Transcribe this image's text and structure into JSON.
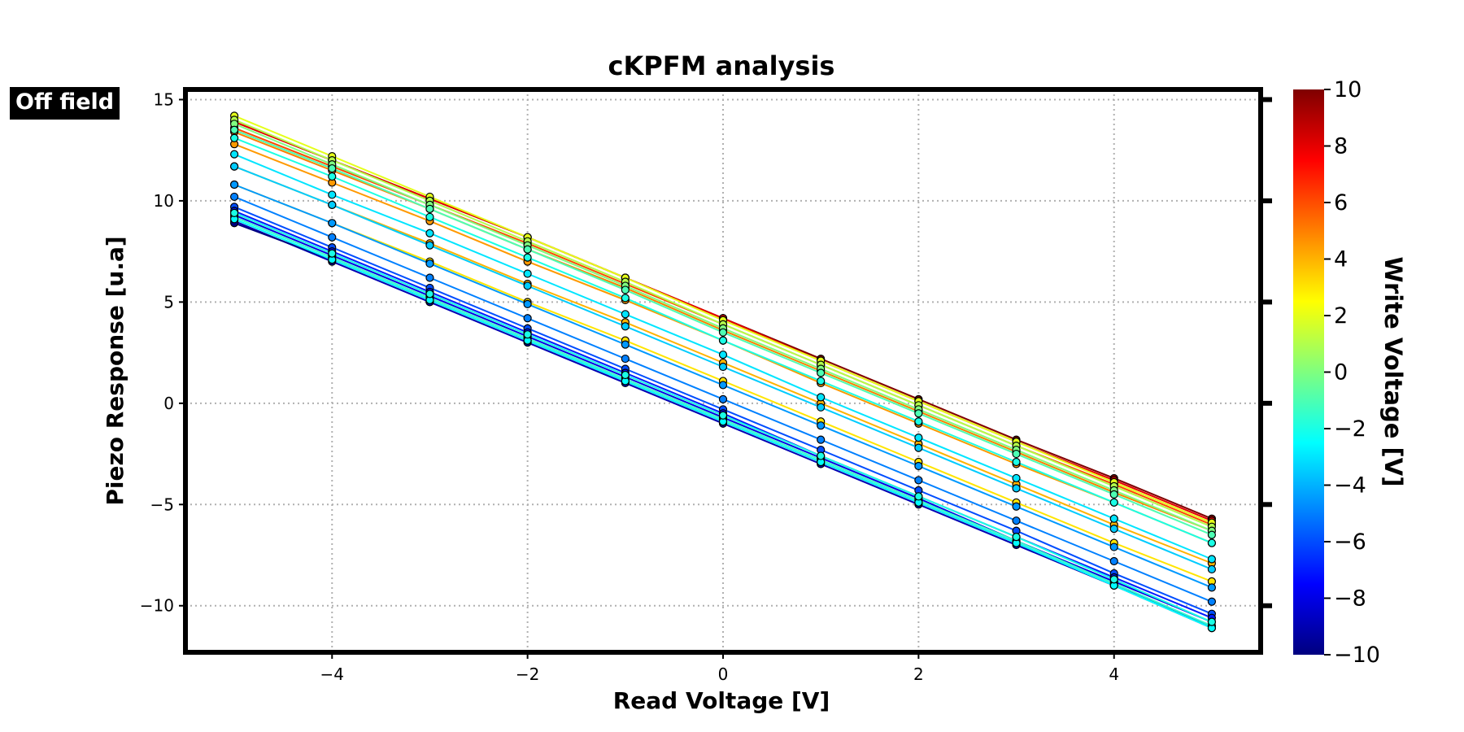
{
  "badge": "Off field",
  "chart_data": {
    "type": "line",
    "title": "cKPFM analysis",
    "xlabel": "Read Voltage [V]",
    "ylabel": "Piezo Response [u.a]",
    "x": [
      -5,
      -4,
      -3,
      -2,
      -1,
      0,
      1,
      2,
      3,
      4,
      5
    ],
    "xlim": [
      -5.5,
      5.5
    ],
    "ylim": [
      -12.3,
      15.5
    ],
    "xticks": [
      -4,
      -2,
      0,
      2,
      4
    ],
    "yticks": [
      -10,
      -5,
      0,
      5,
      10,
      15
    ],
    "grid": true,
    "markers": "circle",
    "colorbar": {
      "label": "Write Voltage [V]",
      "range": [
        -10,
        10
      ],
      "ticks": [
        -10,
        -8,
        -6,
        -4,
        -2,
        0,
        2,
        4,
        6,
        8,
        10
      ],
      "colormap": "jet",
      "colors": [
        "#00007f",
        "#0000ff",
        "#007fff",
        "#00ffff",
        "#7fff7f",
        "#ffff00",
        "#ff7f00",
        "#ff0000",
        "#7f0000"
      ]
    },
    "series": [
      {
        "write_voltage": 10,
        "values": [
          13.9,
          12.0,
          10.1,
          8.2,
          6.2,
          4.2,
          2.2,
          0.2,
          -1.8,
          -3.7,
          -5.7
        ]
      },
      {
        "write_voltage": 8,
        "values": [
          13.9,
          12.0,
          10.1,
          8.2,
          6.2,
          4.2,
          2.1,
          0.1,
          -1.9,
          -3.8,
          -5.8
        ]
      },
      {
        "write_voltage": 6,
        "values": [
          13.6,
          11.7,
          9.8,
          7.9,
          5.9,
          3.9,
          1.9,
          -0.1,
          -2.1,
          -4.0,
          -6.0
        ]
      },
      {
        "write_voltage": 5,
        "values": [
          13.4,
          11.5,
          9.6,
          7.6,
          5.7,
          3.6,
          1.6,
          -0.4,
          -2.4,
          -4.4,
          -6.3
        ]
      },
      {
        "write_voltage": 4.5,
        "values": [
          12.8,
          10.9,
          9.0,
          7.0,
          5.1,
          3.1,
          1.0,
          -1.0,
          -3.0,
          -4.9,
          -6.9
        ]
      },
      {
        "write_voltage": 4,
        "values": [
          11.7,
          9.8,
          7.9,
          5.9,
          4.0,
          2.0,
          0.0,
          -2.0,
          -4.0,
          -6.0,
          -7.9
        ]
      },
      {
        "write_voltage": 3,
        "values": [
          10.8,
          8.9,
          7.0,
          5.0,
          3.1,
          1.1,
          -0.9,
          -2.9,
          -4.9,
          -6.9,
          -8.8
        ]
      },
      {
        "write_voltage": 2,
        "values": [
          14.2,
          12.2,
          10.2,
          8.2,
          6.2,
          4.1,
          2.1,
          0.1,
          -1.9,
          -3.9,
          -5.9
        ]
      },
      {
        "write_voltage": 1,
        "values": [
          14.0,
          12.0,
          10.0,
          8.0,
          6.0,
          3.9,
          1.9,
          -0.1,
          -2.1,
          -4.1,
          -6.1
        ]
      },
      {
        "write_voltage": 0,
        "values": [
          13.8,
          11.8,
          9.8,
          7.8,
          5.8,
          3.7,
          1.7,
          -0.3,
          -2.3,
          -4.3,
          -6.3
        ]
      },
      {
        "write_voltage": -1,
        "values": [
          13.5,
          11.6,
          9.6,
          7.6,
          5.6,
          3.5,
          1.5,
          -0.5,
          -2.5,
          -4.5,
          -6.5
        ]
      },
      {
        "write_voltage": -2,
        "values": [
          13.1,
          11.2,
          9.2,
          7.2,
          5.2,
          3.1,
          1.1,
          -0.9,
          -2.9,
          -4.9,
          -6.9
        ]
      },
      {
        "write_voltage": -3,
        "values": [
          12.3,
          10.3,
          8.4,
          6.4,
          4.4,
          2.4,
          0.3,
          -1.7,
          -3.7,
          -5.7,
          -7.7
        ]
      },
      {
        "write_voltage": -3.5,
        "values": [
          11.7,
          9.8,
          7.8,
          5.8,
          3.8,
          1.8,
          -0.2,
          -2.2,
          -4.2,
          -6.2,
          -8.2
        ]
      },
      {
        "write_voltage": -4.5,
        "values": [
          10.8,
          8.9,
          6.9,
          4.9,
          2.9,
          0.9,
          -1.1,
          -3.1,
          -5.1,
          -7.1,
          -9.1
        ]
      },
      {
        "write_voltage": -5,
        "values": [
          10.2,
          8.2,
          6.2,
          4.2,
          2.2,
          0.2,
          -1.8,
          -3.8,
          -5.8,
          -7.8,
          -9.8
        ]
      },
      {
        "write_voltage": -6,
        "values": [
          9.7,
          7.7,
          5.7,
          3.7,
          1.7,
          -0.3,
          -2.3,
          -4.3,
          -6.3,
          -8.4,
          -10.4
        ]
      },
      {
        "write_voltage": -7,
        "values": [
          9.5,
          7.5,
          5.5,
          3.5,
          1.5,
          -0.5,
          -2.6,
          -4.6,
          -6.6,
          -8.6,
          -10.6
        ]
      },
      {
        "write_voltage": -8,
        "values": [
          9.3,
          7.3,
          5.3,
          3.3,
          1.3,
          -0.7,
          -2.7,
          -4.7,
          -6.8,
          -8.8,
          -10.8
        ]
      },
      {
        "write_voltage": -9,
        "values": [
          9.0,
          7.0,
          5.0,
          3.0,
          1.0,
          -1.0,
          -3.0,
          -5.0,
          -7.0,
          -9.0,
          -11.0
        ]
      },
      {
        "write_voltage": -10,
        "values": [
          8.9,
          7.1,
          5.1,
          3.1,
          1.1,
          -0.9,
          -2.9,
          -4.9,
          -6.9,
          -9.0,
          -11.1
        ]
      },
      {
        "write_voltage": -1.5,
        "values": [
          9.2,
          7.2,
          5.2,
          3.2,
          1.2,
          -0.8,
          -2.8,
          -4.8,
          -6.8,
          -8.9,
          -11.0
        ]
      },
      {
        "write_voltage": -2.5,
        "values": [
          9.1,
          7.1,
          5.1,
          3.1,
          1.1,
          -0.9,
          -2.9,
          -4.9,
          -6.9,
          -9.0,
          -11.1
        ]
      },
      {
        "write_voltage": -2,
        "values": [
          9.4,
          7.4,
          5.4,
          3.4,
          1.4,
          -0.6,
          -2.6,
          -4.6,
          -6.6,
          -8.7,
          -10.8
        ]
      }
    ]
  }
}
